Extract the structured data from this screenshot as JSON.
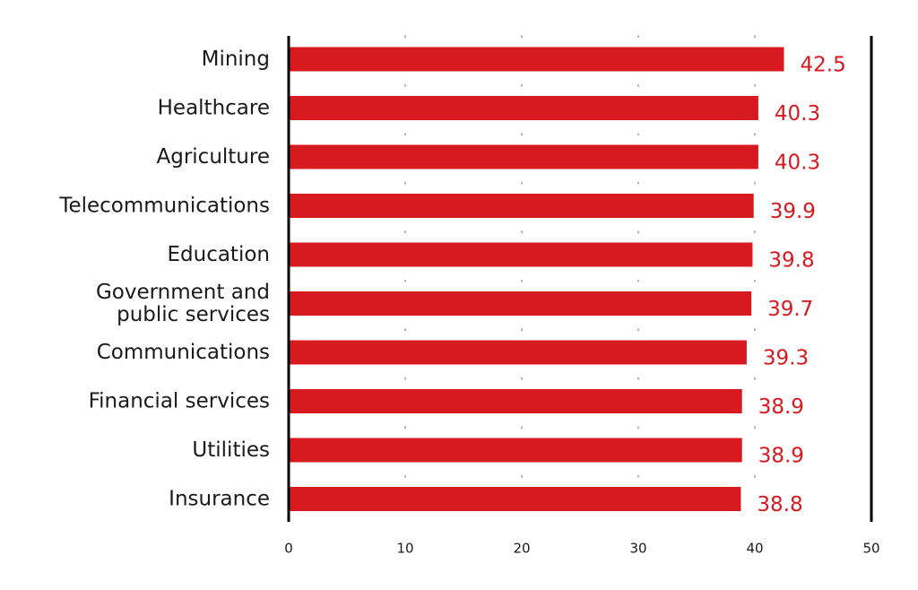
{
  "chart_data": {
    "type": "bar",
    "orientation": "horizontal",
    "categories": [
      [
        "Mining"
      ],
      [
        "Healthcare"
      ],
      [
        "Agriculture"
      ],
      [
        "Telecommunications"
      ],
      [
        "Education"
      ],
      [
        "Government and",
        "public services"
      ],
      [
        "Communications"
      ],
      [
        "Financial services"
      ],
      [
        "Utilities"
      ],
      [
        "Insurance"
      ]
    ],
    "values": [
      42.5,
      40.3,
      40.3,
      39.9,
      39.8,
      39.7,
      39.3,
      38.9,
      38.9,
      38.8
    ],
    "value_labels": [
      "42.5",
      "40.3",
      "40.3",
      "39.9",
      "39.8",
      "39.7",
      "39.3",
      "38.9",
      "38.9",
      "38.8"
    ],
    "xlim": [
      0,
      50
    ],
    "xticks": [
      0,
      10,
      20,
      30,
      40,
      50
    ],
    "xtick_labels": [
      "0",
      "10",
      "20",
      "30",
      "40",
      "50"
    ],
    "title": "",
    "xlabel": "",
    "ylabel": "",
    "grid": "dotted vertical",
    "legend": "none",
    "colors": {
      "bar": "#d71920",
      "value_label": "#d71920",
      "axis": "#000000",
      "grid": "#999999",
      "text": "#1a1a1a"
    }
  }
}
